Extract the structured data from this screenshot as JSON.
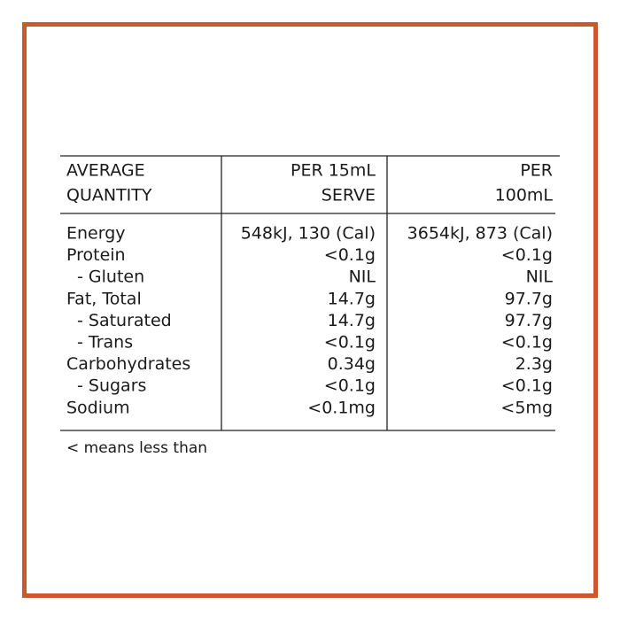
{
  "table": {
    "header": [
      [
        "AVERAGE",
        "QUANTITY"
      ],
      [
        "PER 15mL",
        "SERVE"
      ],
      [
        "PER",
        "100mL"
      ]
    ],
    "rows": [
      [
        "Energy",
        "548kJ, 130 (Cal)",
        "3654kJ, 873 (Cal)"
      ],
      [
        "Protein",
        "<0.1g",
        "<0.1g"
      ],
      [
        "- Gluten",
        "NIL",
        "NIL"
      ],
      [
        "Fat, Total",
        "14.7g",
        "97.7g"
      ],
      [
        "- Saturated",
        "14.7g",
        "97.7g"
      ],
      [
        "- Trans",
        "<0.1g",
        "<0.1g"
      ],
      [
        "Carbohydrates",
        "0.34g",
        "2.3g"
      ],
      [
        "- Sugars",
        "<0.1g",
        "<0.1g"
      ],
      [
        "Sodium",
        "<0.1mg",
        "<5mg"
      ]
    ]
  },
  "footnote": "< means less than"
}
